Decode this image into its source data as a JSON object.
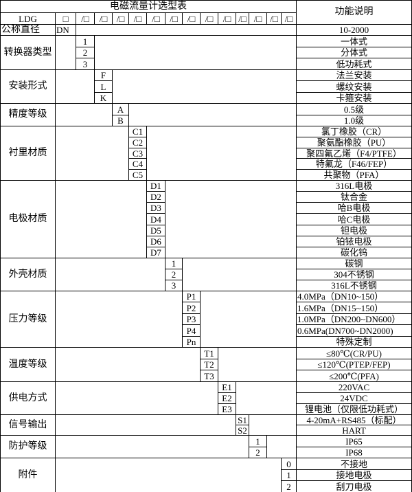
{
  "title": "电磁流量计选型表",
  "function_header": "功能说明",
  "model_row": {
    "prefix": "LDG",
    "first_box": "□",
    "slots": [
      "/□",
      "/□",
      "/□",
      "/□",
      "/□",
      "/□",
      "/□",
      "/□",
      "/□",
      "/□",
      "/□",
      "/□",
      "/□"
    ]
  },
  "nominal": {
    "label": "公称直径",
    "code": "DN",
    "desc": "10-2000"
  },
  "groups": [
    {
      "label": "转换器类型",
      "codes": [
        "1",
        "2",
        "3"
      ],
      "descs": [
        "一体式",
        "分体式",
        "低功耗式"
      ]
    },
    {
      "label": "安装形式",
      "codes": [
        "F",
        "L",
        "K"
      ],
      "descs": [
        "法兰安装",
        "螺纹安装",
        "卡箍安装"
      ]
    },
    {
      "label": "精度等级",
      "codes": [
        "A",
        "B"
      ],
      "descs": [
        "0.5级",
        "1.0级"
      ]
    },
    {
      "label": "衬里材质",
      "codes": [
        "C1",
        "C2",
        "C3",
        "C4",
        "C5"
      ],
      "descs": [
        "氯丁橡胶（CR）",
        "聚氨酯橡胶（PU）",
        "聚四氟乙烯（F4/PTFE）",
        "特氟龙（F46/FEP）",
        "共聚物（PFA）"
      ]
    },
    {
      "label": "电极材质",
      "codes": [
        "D1",
        "D2",
        "D3",
        "D4",
        "D5",
        "D6",
        "D7"
      ],
      "descs": [
        "316L电极",
        "钛合金",
        "哈B电极",
        "哈C电极",
        "钽电极",
        "铂铱电极",
        "碳化钨"
      ]
    },
    {
      "label": "外壳材质",
      "codes": [
        "1",
        "2",
        "3"
      ],
      "descs": [
        "碳钢",
        "304不锈钢",
        "316L不锈钢"
      ]
    },
    {
      "label": "压力等级",
      "codes": [
        "P1",
        "P2",
        "P3",
        "P4",
        "Pn"
      ],
      "descs": [
        "4.0MPa（DN10~150）",
        "1.6MPa（DN15~150）",
        "1.0MPa（DN200~DN600）",
        "0.6MPa(DN700~DN2000)",
        "特殊定制"
      ]
    },
    {
      "label": "温度等级",
      "codes": [
        "T1",
        "T2",
        "T3"
      ],
      "descs": [
        "≤80℃(CR/PU)",
        "≤120℃(PTEP/FEP)",
        "≤200℃(PFA)"
      ]
    },
    {
      "label": "供电方式",
      "codes": [
        "E1",
        "E2",
        "E3"
      ],
      "descs": [
        "220VAC",
        "24VDC",
        "锂电池（仅限低功耗式）"
      ]
    },
    {
      "label": "信号输出",
      "codes": [
        "S1",
        "S2"
      ],
      "descs": [
        "4-20mA+RS485（标配）",
        "HART"
      ]
    },
    {
      "label": "防护等级",
      "codes": [
        "1",
        "2"
      ],
      "descs": [
        "IP65",
        "IP68"
      ]
    },
    {
      "label": "附件",
      "codes": [
        "0",
        "1",
        "2"
      ],
      "descs": [
        "不接地",
        "接地电极",
        "刮刀电极"
      ]
    }
  ]
}
